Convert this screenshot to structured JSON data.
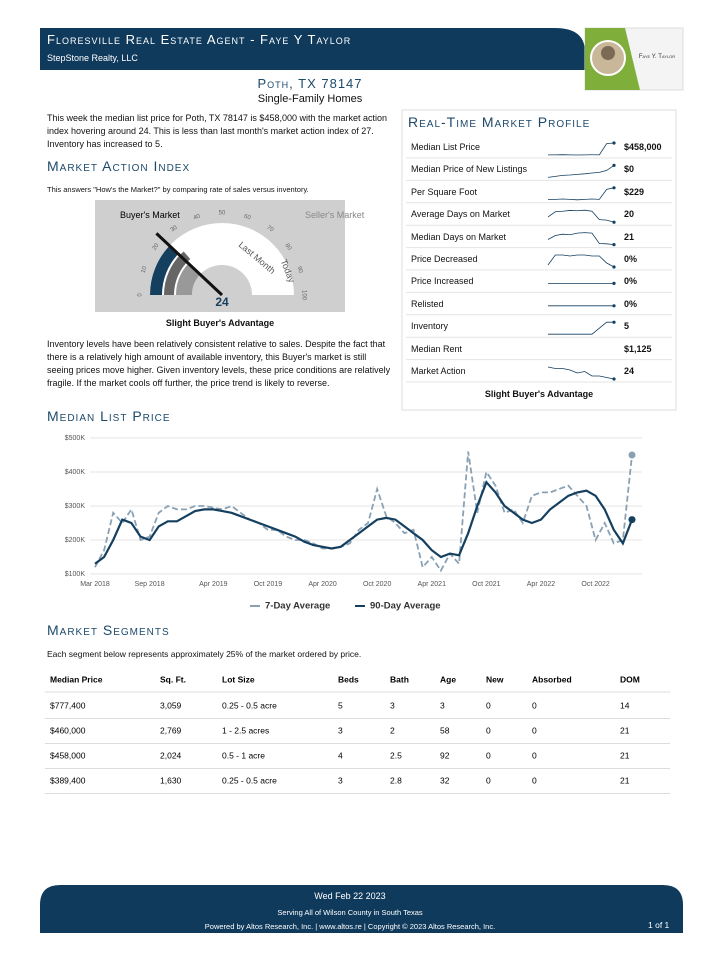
{
  "header": {
    "title": "Floresville Real Estate Agent - Faye Y Taylor",
    "subtitle": "StepStone Realty, LLC",
    "logo_name": "Faye Y. Taylor"
  },
  "location": {
    "title": "Poth, TX 78147",
    "subtitle": "Single-Family Homes"
  },
  "intro": "This week the median list price for Poth, TX 78147 is $458,000 with the market action index hovering around 24. This is less than last month's market action index of 27. Inventory has increased to 5.",
  "market_action": {
    "heading": "Market Action Index",
    "description": "This answers \"How's the Market?\" by comparing rate of sales versus inventory.",
    "buyers_label": "Buyer's Market",
    "sellers_label": "Seller's Market",
    "ticks": [
      0,
      10,
      20,
      30,
      40,
      50,
      60,
      70,
      80,
      90,
      100
    ],
    "value": 24,
    "last_month": 27,
    "last_month_label": "Last Month",
    "today_label": "Today",
    "caption": "Slight Buyer's Advantage"
  },
  "body_text": "Inventory levels have been relatively consistent relative to sales. Despite the fact that there is a relatively high amount of available inventory, this Buyer's market is still seeing prices move higher. Given inventory levels, these price conditions are relatively fragile. If the market cools off further, the price trend is likely to reverse.",
  "profile": {
    "heading": "Real-Time Market Profile",
    "rows": [
      {
        "label": "Median List Price",
        "value": "$458,000",
        "trend": [
          300,
          300,
          302,
          300,
          298,
          300,
          301,
          300,
          450,
          458
        ]
      },
      {
        "label": "Median Price of New Listings",
        "value": "$0",
        "trend": [
          200,
          205,
          210,
          212,
          215,
          218,
          222,
          225,
          235,
          260
        ]
      },
      {
        "label": "Per Square Foot",
        "value": "$229",
        "trend": [
          200,
          200,
          201,
          200,
          199,
          200,
          201,
          200,
          225,
          229
        ]
      },
      {
        "label": "Average Days on Market",
        "value": "20",
        "trend": [
          40,
          60,
          62,
          65,
          64,
          66,
          62,
          30,
          28,
          20
        ]
      },
      {
        "label": "Median Days on Market",
        "value": "21",
        "trend": [
          40,
          55,
          60,
          58,
          64,
          66,
          64,
          25,
          24,
          21
        ]
      },
      {
        "label": "Price Decreased",
        "value": "0%",
        "trend": [
          10,
          60,
          60,
          55,
          60,
          60,
          55,
          55,
          20,
          0
        ]
      },
      {
        "label": "Price Increased",
        "value": "0%",
        "trend": [
          0,
          0,
          0,
          0,
          0,
          0,
          0,
          0,
          0,
          0
        ]
      },
      {
        "label": "Relisted",
        "value": "0%",
        "trend": [
          0,
          0,
          0,
          0,
          0,
          0,
          0,
          0,
          0,
          0
        ]
      },
      {
        "label": "Inventory",
        "value": "5",
        "trend": [
          3,
          3,
          3,
          3,
          3,
          3,
          3,
          4,
          5,
          5
        ]
      },
      {
        "label": "Median Rent",
        "value": "$1,125"
      },
      {
        "label": "Market Action",
        "value": "24",
        "trend": [
          32,
          31,
          31,
          30,
          28,
          29,
          26,
          26,
          25,
          24
        ]
      }
    ],
    "caption": "Slight Buyer's Advantage"
  },
  "chart_data": {
    "type": "line",
    "title": "Median List Price",
    "categories": [
      "Mar 2018",
      null,
      null,
      null,
      null,
      null,
      "Sep 2018",
      null,
      null,
      null,
      null,
      null,
      null,
      "Apr 2019",
      null,
      null,
      null,
      null,
      null,
      "Oct 2019",
      null,
      null,
      null,
      null,
      null,
      "Apr 2020",
      null,
      null,
      null,
      null,
      null,
      "Oct 2020",
      null,
      null,
      null,
      null,
      null,
      "Apr 2021",
      null,
      null,
      null,
      null,
      null,
      "Oct 2021",
      null,
      null,
      null,
      null,
      null,
      "Apr 2022",
      null,
      null,
      null,
      null,
      null,
      "Oct 2022",
      null,
      null,
      null,
      null
    ],
    "series": [
      {
        "name": "7-Day Average",
        "color": "#8aa1b4",
        "dashed": true,
        "values": [
          120000,
          170000,
          280000,
          250000,
          290000,
          200000,
          210000,
          280000,
          300000,
          290000,
          290000,
          300000,
          300000,
          295000,
          290000,
          300000,
          280000,
          260000,
          250000,
          230000,
          230000,
          210000,
          200000,
          200000,
          190000,
          175000,
          175000,
          180000,
          190000,
          230000,
          250000,
          350000,
          270000,
          250000,
          220000,
          230000,
          120000,
          150000,
          110000,
          160000,
          130000,
          460000,
          280000,
          400000,
          360000,
          280000,
          290000,
          250000,
          330000,
          340000,
          340000,
          350000,
          360000,
          330000,
          300000,
          200000,
          250000,
          190000,
          200000,
          450000
        ]
      },
      {
        "name": "90-Day Average",
        "color": "#153f5f",
        "dashed": false,
        "values": [
          130000,
          150000,
          200000,
          260000,
          250000,
          210000,
          200000,
          240000,
          255000,
          255000,
          270000,
          285000,
          290000,
          290000,
          285000,
          280000,
          270000,
          260000,
          250000,
          240000,
          230000,
          220000,
          210000,
          195000,
          185000,
          180000,
          175000,
          180000,
          200000,
          220000,
          240000,
          260000,
          265000,
          260000,
          240000,
          220000,
          200000,
          170000,
          150000,
          160000,
          155000,
          220000,
          300000,
          370000,
          340000,
          300000,
          280000,
          260000,
          250000,
          260000,
          290000,
          310000,
          330000,
          340000,
          345000,
          330000,
          290000,
          230000,
          190000,
          260000
        ]
      }
    ],
    "ylim": [
      100000,
      500000
    ],
    "yticks": [
      {
        "value": 100000,
        "label": "$100K"
      },
      {
        "value": 200000,
        "label": "$200K"
      },
      {
        "value": 300000,
        "label": "$300K"
      },
      {
        "value": 400000,
        "label": "$400K"
      },
      {
        "value": 500000,
        "label": "$500K"
      }
    ],
    "grid": true
  },
  "segments": {
    "heading": "Market Segments",
    "description": "Each segment below represents approximately 25% of the market ordered by price.",
    "columns": [
      "Median Price",
      "Sq. Ft.",
      "Lot Size",
      "Beds",
      "Bath",
      "Age",
      "New",
      "Absorbed",
      "DOM"
    ],
    "rows": [
      [
        "$777,400",
        "3,059",
        "0.25 - 0.5 acre",
        "5",
        "3",
        "3",
        "0",
        "0",
        "14"
      ],
      [
        "$460,000",
        "2,769",
        "1 - 2.5 acres",
        "3",
        "2",
        "58",
        "0",
        "0",
        "21"
      ],
      [
        "$458,000",
        "2,024",
        "0.5 - 1 acre",
        "4",
        "2.5",
        "92",
        "0",
        "0",
        "21"
      ],
      [
        "$389,400",
        "1,630",
        "0.25 - 0.5 acre",
        "3",
        "2.8",
        "32",
        "0",
        "0",
        "21"
      ]
    ]
  },
  "footer": {
    "date": "Wed Feb 22 2023",
    "serving": "Serving All of Wilson County in South Texas",
    "powered": "Powered by Altos Research, Inc. | www.altos.re | Copyright © 2023 Altos Research, Inc.",
    "page": "1 of 1"
  }
}
